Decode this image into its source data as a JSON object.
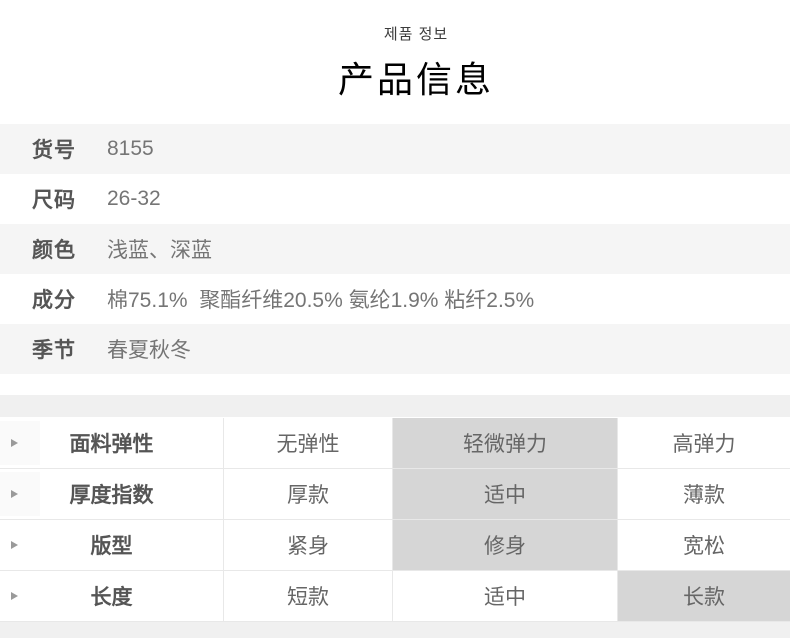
{
  "header": {
    "subtitle": "제품 정보",
    "title": "产品信息"
  },
  "spec_table": {
    "rows": [
      {
        "label": "货号",
        "value": "8155"
      },
      {
        "label": "尺码",
        "value": "26-32"
      },
      {
        "label": "颜色",
        "value": "浅蓝、深蓝"
      },
      {
        "label": "成分",
        "value": "棉75.1%  聚酯纤维20.5% 氨纶1.9% 粘纤2.5%"
      },
      {
        "label": "季节",
        "value": "春夏秋冬"
      }
    ]
  },
  "attribute_table": {
    "rows": [
      {
        "label": "面料弹性",
        "options": [
          "无弹性",
          "轻微弹力",
          "高弹力"
        ],
        "selected_index": 1
      },
      {
        "label": "厚度指数",
        "options": [
          "厚款",
          "适中",
          "薄款"
        ],
        "selected_index": 1
      },
      {
        "label": "版型",
        "options": [
          "紧身",
          "修身",
          "宽松"
        ],
        "selected_index": 1
      },
      {
        "label": "长度",
        "options": [
          "短款",
          "适中",
          "长款"
        ],
        "selected_index": 2
      }
    ]
  },
  "colors": {
    "accent_highlight": "#d6d6d6",
    "row_alt_bg": "#f5f5f5",
    "strip_bg": "#f0f0f0",
    "border": "#e8e8e8",
    "label_text": "#555555",
    "value_text": "#757575",
    "option_text": "#666666",
    "title_text": "#000000",
    "subtitle_text": "#3c3c3c"
  }
}
